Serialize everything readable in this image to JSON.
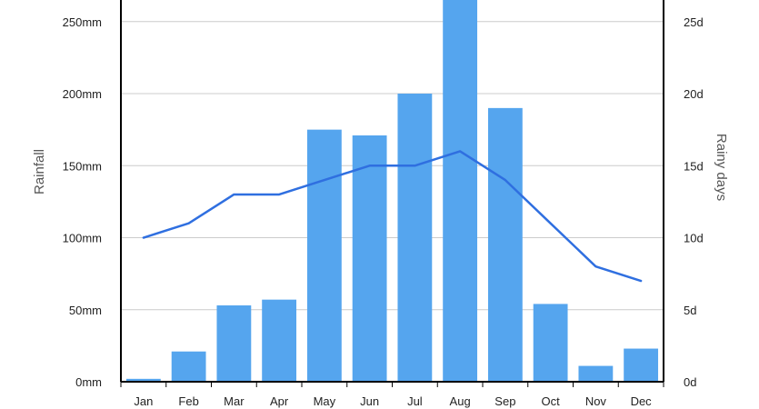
{
  "chart_data": {
    "type": "bar",
    "categories": [
      "Jan",
      "Feb",
      "Mar",
      "Apr",
      "May",
      "Jun",
      "Jul",
      "Aug",
      "Sep",
      "Oct",
      "Nov",
      "Dec"
    ],
    "series": [
      {
        "name": "Rainfall",
        "type": "bar",
        "axis": "left",
        "values": [
          2,
          21,
          53,
          57,
          175,
          171,
          200,
          265,
          190,
          54,
          11,
          23
        ],
        "color": "#55a5ee"
      },
      {
        "name": "Rainy days",
        "type": "line",
        "axis": "right",
        "values": [
          10,
          11,
          13,
          13,
          14,
          15,
          15,
          16,
          14,
          11,
          8,
          7
        ],
        "color": "#2f6fe0"
      }
    ],
    "ylabel": "Rainfall",
    "y2label": "Rainy days",
    "ylim": [
      0,
      265
    ],
    "y2lim": [
      0,
      26.5
    ],
    "yticks": [
      0,
      50,
      100,
      150,
      200,
      250
    ],
    "yticklabels": [
      "0mm",
      "50mm",
      "100mm",
      "150mm",
      "200mm",
      "250mm"
    ],
    "y2ticks": [
      0,
      5,
      10,
      15,
      20,
      25
    ],
    "y2ticklabels": [
      "0d",
      "5d",
      "10d",
      "15d",
      "20d",
      "25d"
    ],
    "grid": true,
    "gridColor": "#cccccc",
    "axisColor": "#000000"
  }
}
